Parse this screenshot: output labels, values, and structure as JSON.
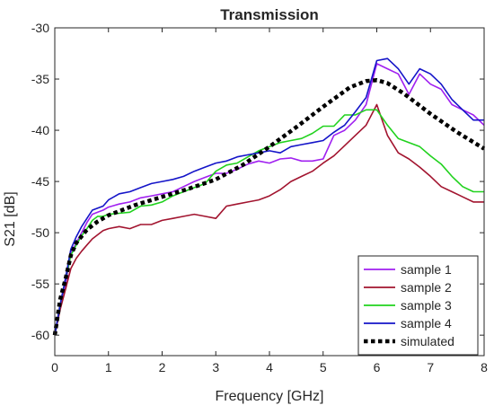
{
  "chart_data": {
    "type": "line",
    "title": "Transmission",
    "xlabel": "Frequency [GHz]",
    "ylabel": "S21 [dB]",
    "xlim": [
      0,
      8
    ],
    "ylim": [
      -62,
      -30
    ],
    "xticks": [
      0,
      1,
      2,
      3,
      4,
      5,
      6,
      7,
      8
    ],
    "yticks": [
      -60,
      -55,
      -50,
      -45,
      -40,
      -35,
      -30
    ],
    "xtick_labels": [
      "0",
      "1",
      "2",
      "3",
      "4",
      "5",
      "6",
      "7",
      "8"
    ],
    "ytick_labels": [
      "-60",
      "-55",
      "-50",
      "-45",
      "-40",
      "-35",
      "-30"
    ],
    "grid": false,
    "legend_position": "bottom-right",
    "series": [
      {
        "name": "sample 1",
        "color": "#a020f0",
        "style": "solid",
        "x": [
          0.0,
          0.1,
          0.2,
          0.3,
          0.4,
          0.5,
          0.6,
          0.7,
          0.8,
          0.9,
          1.0,
          1.2,
          1.4,
          1.6,
          1.8,
          2.0,
          2.2,
          2.4,
          2.6,
          2.8,
          3.0,
          3.2,
          3.4,
          3.6,
          3.8,
          4.0,
          4.2,
          4.4,
          4.6,
          4.8,
          5.0,
          5.2,
          5.4,
          5.6,
          5.8,
          6.0,
          6.2,
          6.4,
          6.6,
          6.8,
          7.0,
          7.2,
          7.4,
          7.6,
          7.8,
          8.0
        ],
        "y": [
          -60,
          -57,
          -55,
          -52,
          -51,
          -50,
          -49,
          -48.2,
          -48,
          -47.8,
          -47.5,
          -47.2,
          -47,
          -46.6,
          -46.4,
          -46.2,
          -46,
          -45.5,
          -45,
          -44.6,
          -44.2,
          -44.2,
          -43.8,
          -43.3,
          -43,
          -43.2,
          -42.8,
          -42.7,
          -43,
          -43,
          -42.8,
          -40.5,
          -40,
          -39,
          -37.5,
          -33.5,
          -34,
          -34.5,
          -36.5,
          -34.5,
          -35.5,
          -36,
          -37.5,
          -38,
          -38.5,
          -39.5
        ]
      },
      {
        "name": "sample 2",
        "color": "#a2142f",
        "style": "solid",
        "x": [
          0.0,
          0.1,
          0.2,
          0.3,
          0.4,
          0.5,
          0.6,
          0.7,
          0.8,
          0.9,
          1.0,
          1.2,
          1.4,
          1.6,
          1.8,
          2.0,
          2.2,
          2.4,
          2.6,
          2.8,
          3.0,
          3.2,
          3.4,
          3.6,
          3.8,
          4.0,
          4.2,
          4.4,
          4.6,
          4.8,
          5.0,
          5.2,
          5.4,
          5.6,
          5.8,
          6.0,
          6.2,
          6.4,
          6.6,
          6.8,
          7.0,
          7.2,
          7.4,
          7.6,
          7.8,
          8.0
        ],
        "y": [
          -60,
          -57.5,
          -55.5,
          -53.5,
          -52.5,
          -51.8,
          -51.2,
          -50.6,
          -50.2,
          -49.8,
          -49.6,
          -49.4,
          -49.6,
          -49.2,
          -49.2,
          -48.8,
          -48.6,
          -48.4,
          -48.2,
          -48.4,
          -48.6,
          -47.4,
          -47.2,
          -47,
          -46.8,
          -46.4,
          -45.8,
          -45,
          -44.5,
          -44,
          -43.2,
          -42.5,
          -41.5,
          -40.5,
          -39.5,
          -37.5,
          -40.5,
          -42.2,
          -42.8,
          -43.6,
          -44.5,
          -45.5,
          -46,
          -46.5,
          -47,
          -47
        ]
      },
      {
        "name": "sample 3",
        "color": "#21d21e",
        "style": "solid",
        "x": [
          0.0,
          0.1,
          0.2,
          0.3,
          0.4,
          0.5,
          0.6,
          0.7,
          0.8,
          0.9,
          1.0,
          1.2,
          1.4,
          1.6,
          1.8,
          2.0,
          2.2,
          2.4,
          2.6,
          2.8,
          3.0,
          3.2,
          3.4,
          3.6,
          3.8,
          4.0,
          4.2,
          4.4,
          4.6,
          4.8,
          5.0,
          5.2,
          5.4,
          5.6,
          5.8,
          6.0,
          6.2,
          6.4,
          6.6,
          6.8,
          7.0,
          7.2,
          7.4,
          7.6,
          7.8,
          8.0
        ],
        "y": [
          -60,
          -57,
          -54.5,
          -52.2,
          -51.2,
          -50.3,
          -49.6,
          -48.8,
          -48.4,
          -48.4,
          -48.2,
          -48.1,
          -48,
          -47.4,
          -47.3,
          -47,
          -46.4,
          -46,
          -45.6,
          -45.2,
          -44,
          -43.4,
          -43.2,
          -42.6,
          -42,
          -41.6,
          -41.2,
          -41,
          -40.8,
          -40.3,
          -39.6,
          -39.6,
          -38.5,
          -38.5,
          -38,
          -38,
          -39.5,
          -40.8,
          -41.2,
          -41.6,
          -42.5,
          -43.3,
          -44.5,
          -45.5,
          -46,
          -46
        ]
      },
      {
        "name": "sample 4",
        "color": "#1414c8",
        "style": "solid",
        "x": [
          0.0,
          0.1,
          0.2,
          0.3,
          0.4,
          0.5,
          0.6,
          0.7,
          0.8,
          0.9,
          1.0,
          1.2,
          1.4,
          1.6,
          1.8,
          2.0,
          2.2,
          2.4,
          2.6,
          2.8,
          3.0,
          3.2,
          3.4,
          3.6,
          3.8,
          4.0,
          4.2,
          4.4,
          4.6,
          4.8,
          5.0,
          5.2,
          5.4,
          5.6,
          5.8,
          6.0,
          6.2,
          6.4,
          6.6,
          6.8,
          7.0,
          7.2,
          7.4,
          7.6,
          7.8,
          8.0
        ],
        "y": [
          -60,
          -57,
          -54.4,
          -51.6,
          -50.4,
          -49.4,
          -48.6,
          -47.8,
          -47.6,
          -47.4,
          -46.8,
          -46.2,
          -46,
          -45.6,
          -45.2,
          -45,
          -44.8,
          -44.5,
          -44,
          -43.6,
          -43.2,
          -43,
          -42.6,
          -42.4,
          -42.2,
          -42,
          -42.2,
          -41.6,
          -41.4,
          -41.2,
          -41,
          -40.2,
          -39.5,
          -38.2,
          -36.8,
          -33.2,
          -33,
          -34,
          -35.5,
          -34,
          -34.5,
          -35.5,
          -37,
          -38,
          -39,
          -39
        ]
      },
      {
        "name": "simulated",
        "color": "#000000",
        "style": "dotted",
        "x": [
          0.0,
          0.1,
          0.2,
          0.3,
          0.4,
          0.6,
          0.8,
          1.0,
          1.5,
          2.0,
          2.5,
          3.0,
          3.5,
          4.0,
          4.5,
          5.0,
          5.5,
          5.8,
          6.0,
          6.2,
          6.5,
          7.0,
          7.5,
          8.0
        ],
        "y": [
          -60,
          -56.5,
          -54.5,
          -52.2,
          -51,
          -49.7,
          -48.9,
          -48.3,
          -47.3,
          -46.5,
          -45.7,
          -44.8,
          -43.4,
          -41.6,
          -39.7,
          -37.7,
          -35.8,
          -35.2,
          -35.1,
          -35.4,
          -36.4,
          -38.4,
          -40.2,
          -41.8
        ]
      }
    ]
  }
}
